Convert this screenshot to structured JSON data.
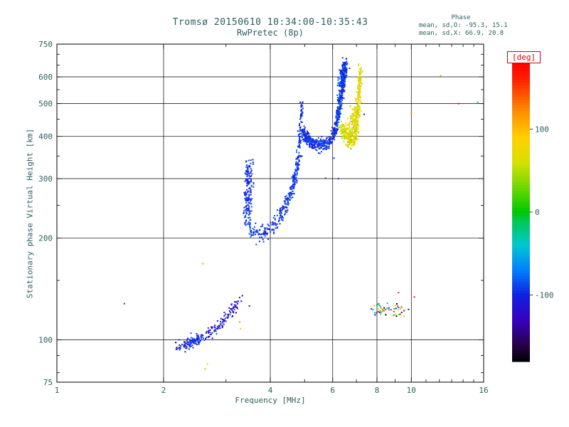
{
  "chart_data": {
    "type": "scatter",
    "title": "Tromsø 20150610 10:34:00-10:35:43",
    "subtitle": "RwPretec (8p)",
    "xlabel": "Frequency [MHz]",
    "ylabel": "Stationary phase Virtual Height [km]",
    "x_scale": "log",
    "y_scale": "log",
    "xlim": [
      1,
      16
    ],
    "ylim": [
      75,
      750
    ],
    "x_ticks_major": [
      1,
      2,
      4,
      6,
      8,
      10,
      16
    ],
    "x_ticks_minor": [
      3,
      5,
      7,
      9,
      11,
      12,
      13,
      14,
      15
    ],
    "x_gridlines": [
      2,
      4,
      6,
      8,
      10
    ],
    "y_ticks_major": [
      750,
      600,
      500,
      400,
      300,
      200,
      100,
      75
    ],
    "y_ticks_minor": [
      80,
      90,
      150,
      250,
      350,
      450,
      550,
      650,
      700
    ],
    "y_gridlines": [
      600,
      500,
      400,
      300,
      200,
      100
    ],
    "stats": {
      "header": "Phase",
      "line_o": "mean, sd,O: -95.3, 15.1",
      "line_x": "mean, sd,X:  66.9, 20.8"
    },
    "colorbar": {
      "label": "[deg]",
      "range": [
        -180,
        180
      ],
      "ticks": [
        100,
        0,
        -100
      ],
      "stops": [
        [
          -180,
          "#000000"
        ],
        [
          -160,
          "#28004a"
        ],
        [
          -130,
          "#3800c0"
        ],
        [
          -100,
          "#1020e0"
        ],
        [
          -70,
          "#0080ff"
        ],
        [
          -40,
          "#00c8d0"
        ],
        [
          -10,
          "#00c850"
        ],
        [
          0,
          "#00c800"
        ],
        [
          30,
          "#70d800"
        ],
        [
          60,
          "#d8e000"
        ],
        [
          90,
          "#ffd000"
        ],
        [
          120,
          "#ff9000"
        ],
        [
          160,
          "#ff2000"
        ],
        [
          180,
          "#ff0000"
        ]
      ]
    },
    "traces": [
      {
        "name": "e-region-arc",
        "phase_mean": -112,
        "phase_sd": 22,
        "n": 150,
        "f_spread": 0.012,
        "h_spread": 0.02,
        "points": [
          [
            2.15,
            95
          ],
          [
            2.3,
            97
          ],
          [
            2.5,
            100
          ],
          [
            2.75,
            106
          ],
          [
            2.95,
            113
          ],
          [
            3.15,
            123
          ],
          [
            3.28,
            132
          ]
        ]
      },
      {
        "name": "e-region-arc-dense",
        "phase_mean": -100,
        "phase_sd": 18,
        "n": 80,
        "f_spread": 0.01,
        "h_spread": 0.02,
        "points": [
          [
            2.3,
            97
          ],
          [
            2.55,
            101
          ]
        ]
      },
      {
        "name": "o-trace-cusp",
        "phase_mean": -95,
        "phase_sd": 12,
        "n": 180,
        "f_spread": 0.014,
        "h_spread": 0.012,
        "points": [
          [
            3.44,
            218
          ],
          [
            3.46,
            260
          ],
          [
            3.47,
            300
          ],
          [
            3.47,
            338
          ]
        ]
      },
      {
        "name": "o-trace-valley-1",
        "phase_mean": -95,
        "phase_sd": 13,
        "n": 300,
        "f_spread": 0.008,
        "h_spread": 0.025,
        "points": [
          [
            3.5,
            212
          ],
          [
            3.65,
            205
          ],
          [
            3.85,
            207
          ],
          [
            4.05,
            216
          ],
          [
            4.25,
            232
          ],
          [
            4.45,
            252
          ],
          [
            4.6,
            275
          ],
          [
            4.75,
            315
          ],
          [
            4.82,
            355
          ]
        ]
      },
      {
        "name": "o-trace-spike",
        "phase_mean": -95,
        "phase_sd": 12,
        "n": 70,
        "f_spread": 0.005,
        "h_spread": 0.02,
        "points": [
          [
            4.83,
            370
          ],
          [
            4.86,
            420
          ],
          [
            4.89,
            465
          ],
          [
            4.91,
            500
          ]
        ]
      },
      {
        "name": "o-trace-valley-2",
        "phase_mean": -95,
        "phase_sd": 13,
        "n": 300,
        "f_spread": 0.008,
        "h_spread": 0.02,
        "points": [
          [
            4.95,
            415
          ],
          [
            5.1,
            393
          ],
          [
            5.3,
            381
          ],
          [
            5.55,
            376
          ],
          [
            5.75,
            380
          ],
          [
            5.95,
            390
          ]
        ]
      },
      {
        "name": "o-trace-riser",
        "phase_mean": -95,
        "phase_sd": 13,
        "n": 330,
        "f_spread": 0.008,
        "h_spread": 0.02,
        "points": [
          [
            6.0,
            398
          ],
          [
            6.12,
            425
          ],
          [
            6.22,
            465
          ],
          [
            6.3,
            510
          ],
          [
            6.38,
            560
          ],
          [
            6.44,
            610
          ],
          [
            6.5,
            650
          ],
          [
            6.53,
            668
          ]
        ]
      },
      {
        "name": "o-trace-top-clump",
        "phase_mean": -95,
        "phase_sd": 15,
        "n": 110,
        "f_spread": 0.012,
        "h_spread": 0.025,
        "points": [
          [
            6.35,
            575
          ],
          [
            6.45,
            625
          ],
          [
            6.5,
            645
          ]
        ]
      },
      {
        "name": "x-trace-valley",
        "phase_mean": 67,
        "phase_sd": 18,
        "n": 150,
        "f_spread": 0.01,
        "h_spread": 0.02,
        "points": [
          [
            6.4,
            430
          ],
          [
            6.55,
            400
          ],
          [
            6.7,
            388
          ],
          [
            6.85,
            387
          ],
          [
            6.95,
            396
          ]
        ]
      },
      {
        "name": "x-trace-riser",
        "phase_mean": 67,
        "phase_sd": 18,
        "n": 190,
        "f_spread": 0.006,
        "h_spread": 0.02,
        "points": [
          [
            6.95,
            400
          ],
          [
            7.02,
            440
          ],
          [
            7.08,
            490
          ],
          [
            7.12,
            540
          ],
          [
            7.16,
            590
          ],
          [
            7.19,
            635
          ]
        ]
      },
      {
        "name": "x-trace-clump",
        "phase_mean": 67,
        "phase_sd": 20,
        "n": 170,
        "f_spread": 0.015,
        "h_spread": 0.04,
        "points": [
          [
            6.6,
            390
          ],
          [
            6.75,
            405
          ],
          [
            6.9,
            440
          ],
          [
            7.0,
            475
          ],
          [
            7.05,
            500
          ]
        ]
      },
      {
        "name": "sporadic-e-cluster",
        "phase_uniform": true,
        "phase_mean": 0,
        "phase_sd": 0,
        "n": 55,
        "f_spread": 0.02,
        "h_spread": 0.025,
        "points": [
          [
            7.7,
            121
          ],
          [
            8.2,
            123
          ],
          [
            8.7,
            124
          ],
          [
            9.2,
            123
          ],
          [
            9.7,
            122
          ]
        ]
      }
    ],
    "outliers": [
      [
        1.55,
        128,
        -95
      ],
      [
        2.58,
        168,
        115
      ],
      [
        2.62,
        82,
        110
      ],
      [
        2.66,
        85,
        80
      ],
      [
        3.28,
        113,
        120
      ],
      [
        3.3,
        108,
        100
      ],
      [
        3.49,
        126,
        -100
      ],
      [
        5.73,
        301,
        -95
      ],
      [
        6.23,
        300,
        -95
      ],
      [
        6.05,
        345,
        -95
      ],
      [
        7.36,
        465,
        -100
      ],
      [
        9.2,
        138,
        165
      ],
      [
        10.2,
        134,
        170
      ],
      [
        10.0,
        470,
        120
      ],
      [
        12.1,
        605,
        115
      ],
      [
        13.6,
        500,
        170
      ],
      [
        15.4,
        505,
        -60
      ],
      [
        7.1,
        655,
        70
      ],
      [
        6.55,
        678,
        -95
      ]
    ]
  }
}
